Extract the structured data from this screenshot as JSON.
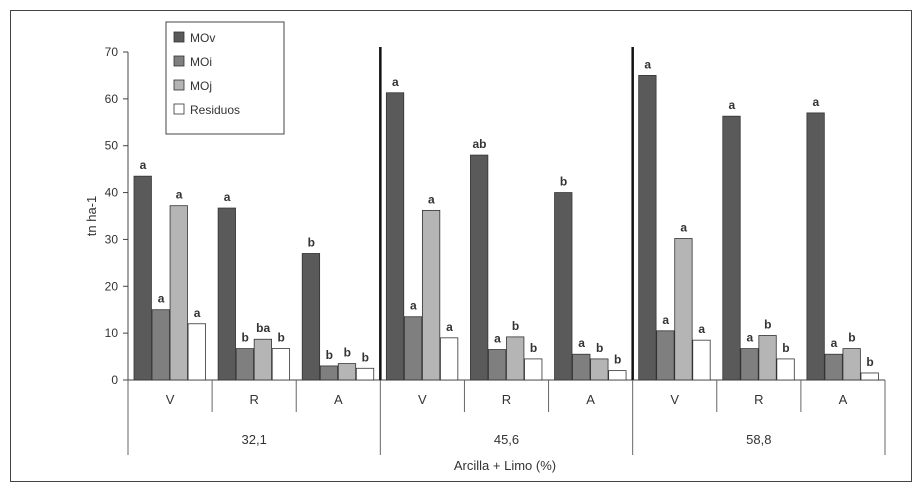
{
  "chart_data": {
    "type": "bar",
    "title": "",
    "xlabel": "Arcilla + Limo (%)",
    "ylabel": "tn ha-1",
    "ylim": [
      0,
      70
    ],
    "yticks": [
      "0",
      "10",
      "20",
      "30",
      "40",
      "50",
      "60",
      "70"
    ],
    "groups": [
      "32,1",
      "45,6",
      "58,8"
    ],
    "categories": [
      "V",
      "R",
      "A",
      "V",
      "R",
      "A",
      "V",
      "R",
      "A"
    ],
    "legend_position": "top-left",
    "series": [
      {
        "name": "MOv",
        "color": "#5a5a5a",
        "values": [
          43.5,
          36.7,
          27.0,
          61.3,
          48.0,
          40.0,
          65.0,
          56.3,
          57.0
        ],
        "labels": [
          "a",
          "a",
          "b",
          "a",
          "ab",
          "b",
          "a",
          "a",
          "a"
        ]
      },
      {
        "name": "MOi",
        "color": "#7f7f7f",
        "values": [
          15.0,
          6.7,
          3.0,
          13.5,
          6.5,
          5.5,
          10.5,
          6.7,
          5.5
        ],
        "labels": [
          "a",
          "b",
          "b",
          "a",
          "a",
          "a",
          "a",
          "a",
          "a"
        ]
      },
      {
        "name": "MOj",
        "color": "#b5b5b5",
        "values": [
          37.2,
          8.7,
          3.5,
          36.2,
          9.2,
          4.5,
          30.2,
          9.5,
          6.7
        ],
        "labels": [
          "a",
          "ba",
          "b",
          "a",
          "b",
          "b",
          "a",
          "b",
          "b"
        ]
      },
      {
        "name": "Residuos",
        "color": "#ffffff",
        "values": [
          12.0,
          6.7,
          2.5,
          9.0,
          4.5,
          2.0,
          8.5,
          4.5,
          1.5
        ],
        "labels": [
          "a",
          "b",
          "b",
          "a",
          "b",
          "b",
          "a",
          "b",
          "b"
        ]
      }
    ]
  }
}
